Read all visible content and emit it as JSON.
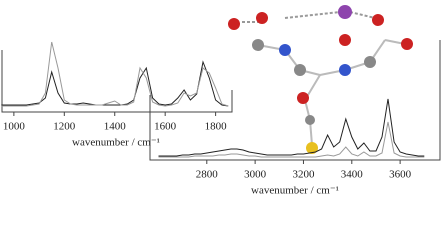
{
  "chart_data": [
    {
      "type": "line",
      "xlabel": "wavenumber / cm⁻¹",
      "xlim": [
        945,
        1865
      ],
      "xticks": [
        1000,
        1200,
        1400,
        1600,
        1800
      ],
      "ylim": [
        0,
        80
      ],
      "x": [
        950,
        975,
        1000,
        1025,
        1050,
        1075,
        1100,
        1125,
        1150,
        1175,
        1200,
        1225,
        1250,
        1275,
        1300,
        1325,
        1350,
        1375,
        1400,
        1425,
        1450,
        1475,
        1500,
        1525,
        1550,
        1575,
        1600,
        1625,
        1650,
        1675,
        1700,
        1725,
        1750,
        1775,
        1800,
        1825,
        1850
      ],
      "series": [
        {
          "color": "#222222",
          "values": [
            3,
            3,
            3,
            3,
            3,
            4,
            5,
            10,
            36,
            15,
            5,
            4,
            4,
            5,
            4,
            3,
            3,
            3,
            3,
            3,
            4,
            8,
            30,
            40,
            10,
            4,
            3,
            4,
            10,
            18,
            8,
            14,
            46,
            30,
            8,
            3,
            2
          ]
        },
        {
          "color": "#999999",
          "values": [
            2,
            2,
            2,
            2,
            2,
            3,
            4,
            15,
            66,
            40,
            8,
            4,
            3,
            3,
            3,
            3,
            3,
            5,
            7,
            3,
            3,
            6,
            40,
            30,
            6,
            3,
            2,
            3,
            5,
            15,
            12,
            15,
            40,
            35,
            20,
            4,
            2
          ]
        }
      ]
    },
    {
      "type": "line",
      "xlabel": "wavenumber / cm⁻¹",
      "xlim": [
        2565,
        3765
      ],
      "xticks": [
        2800,
        3000,
        3200,
        3400,
        3600
      ],
      "ylim": [
        0,
        70
      ],
      "x": [
        2600,
        2625,
        2650,
        2675,
        2700,
        2725,
        2750,
        2775,
        2800,
        2825,
        2850,
        2875,
        2900,
        2925,
        2950,
        2975,
        3000,
        3025,
        3050,
        3075,
        3100,
        3125,
        3150,
        3175,
        3200,
        3225,
        3250,
        3275,
        3300,
        3325,
        3350,
        3375,
        3400,
        3425,
        3450,
        3475,
        3500,
        3525,
        3550,
        3575,
        3600,
        3625,
        3650,
        3675,
        3700
      ],
      "series": [
        {
          "color": "#222222",
          "values": [
            1,
            1,
            1,
            1,
            2,
            2,
            3,
            3,
            4,
            5,
            6,
            7,
            8,
            8,
            7,
            5,
            4,
            3,
            2,
            2,
            2,
            2,
            2,
            3,
            3,
            4,
            5,
            8,
            22,
            10,
            15,
            38,
            20,
            8,
            14,
            6,
            6,
            20,
            58,
            15,
            5,
            3,
            2,
            1,
            1
          ]
        },
        {
          "color": "#999999",
          "values": [
            0,
            0,
            0,
            0,
            0,
            0,
            1,
            1,
            1,
            1,
            2,
            2,
            3,
            3,
            2,
            1,
            1,
            0,
            0,
            0,
            0,
            0,
            0,
            0,
            0,
            0,
            0,
            1,
            2,
            1,
            3,
            10,
            3,
            1,
            5,
            1,
            1,
            4,
            35,
            4,
            1,
            0,
            0,
            0,
            0
          ]
        }
      ]
    }
  ]
}
